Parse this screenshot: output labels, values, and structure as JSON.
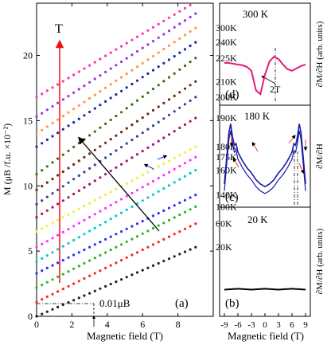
{
  "chart_data": [
    {
      "panel": "(a)",
      "type": "scatter",
      "xlabel": "Magnetic field (T)",
      "ylabel": "M (μB /f.u. ×10⁻²)",
      "xlim": [
        0,
        10
      ],
      "ylim": [
        0,
        24
      ],
      "xticks": [
        "0",
        "2",
        "4",
        "6",
        "8"
      ],
      "yticks": [
        "0",
        "5",
        "10",
        "15",
        "20"
      ],
      "arrow_label": "T",
      "annotation": "0.01μB",
      "annotation_value": 1,
      "series": [
        {
          "name": "20K",
          "color": "#222222",
          "y0": 0.0,
          "y9": 5.3
        },
        {
          "name": "60K",
          "color": "#ff2222",
          "y0": 1.1,
          "y9": 7.1
        },
        {
          "name": "100K",
          "color": "#22bb22",
          "y0": 2.2,
          "y9": 8.4
        },
        {
          "name": "140K",
          "color": "#2233ff",
          "y0": 3.3,
          "y9": 9.3
        },
        {
          "name": "160K",
          "color": "#00cccc",
          "y0": 4.2,
          "y9": 11.2
        },
        {
          "name": "175K",
          "color": "#ff33ff",
          "y0": 5.3,
          "y9": 12.2
        },
        {
          "name": "180K",
          "color": "#eeee44",
          "y0": 6.5,
          "y9": 13.0
        },
        {
          "name": "190K",
          "color": "#aa1166",
          "y0": 7.6,
          "y9": 15.2
        },
        {
          "name": "200K",
          "color": "#334499",
          "y0": 8.6,
          "y9": 16.8
        },
        {
          "name": "210K",
          "color": "#6b2a10",
          "y0": 9.7,
          "y9": 18.0
        },
        {
          "name": "225K",
          "color": "#3a6e12",
          "y0": 10.9,
          "y9": 19.8
        },
        {
          "name": "240K",
          "color": "#1a2a9c",
          "y0": 13.0,
          "y9": 21.0
        },
        {
          "name": "300K",
          "color": "#ff9933",
          "y0": 14.0,
          "y9": 22.1
        },
        {
          "name": "",
          "color": "#9933ee",
          "y0": 15.3,
          "y9": 23.2
        },
        {
          "name": "",
          "color": "#ff33aa",
          "y0": 16.8,
          "y9": 24.1
        }
      ]
    },
    {
      "panel": "(d)",
      "type": "line",
      "title": "300 K",
      "ylabel": "∂M/∂H (arb. units)",
      "annotation": "2T",
      "color": "#e8197a",
      "x": [
        -9,
        -8,
        -7,
        -6,
        -5,
        -4,
        -3,
        -2,
        -1,
        0,
        1,
        2,
        3,
        4,
        5,
        6,
        7,
        8,
        9
      ],
      "y": [
        0.5,
        0.5,
        0.49,
        0.48,
        0.47,
        0.45,
        0.4,
        0.15,
        0.1,
        0.35,
        0.52,
        0.58,
        0.55,
        0.48,
        0.42,
        0.4,
        0.43,
        0.46,
        0.48
      ]
    },
    {
      "panel": "(c)",
      "type": "line",
      "title": "180 K",
      "ylabel": "∂M/∂H",
      "color": "#1a1aa8",
      "x": [
        -9,
        -8.5,
        -8,
        -7.6,
        -7.2,
        -6.8,
        -6.4,
        -6,
        -5,
        -4,
        -3,
        -2,
        -1,
        0,
        1,
        2,
        3,
        4,
        5,
        6,
        6.4,
        6.8,
        7.2,
        7.6,
        8,
        8.5,
        9
      ],
      "y": [
        0.25,
        0.55,
        0.85,
        0.95,
        0.8,
        0.7,
        0.72,
        0.62,
        0.52,
        0.44,
        0.38,
        0.3,
        0.25,
        0.22,
        0.25,
        0.3,
        0.38,
        0.44,
        0.52,
        0.62,
        0.72,
        0.7,
        0.8,
        0.95,
        0.85,
        0.55,
        0.25
      ]
    },
    {
      "panel": "(b)",
      "type": "line",
      "title": "20 K",
      "xlabel": "Magnetic field (T)",
      "ylabel": "∂M/∂H (arb. units)",
      "xticks": [
        "-9",
        "-6",
        "-3",
        "0",
        "3",
        "6",
        "9"
      ],
      "xlim": [
        -9,
        9
      ],
      "color": "#000000",
      "x": [
        -9,
        -6,
        -3,
        0,
        3,
        6,
        9
      ],
      "y": [
        0.3,
        0.31,
        0.3,
        0.31,
        0.3,
        0.31,
        0.3
      ]
    }
  ]
}
